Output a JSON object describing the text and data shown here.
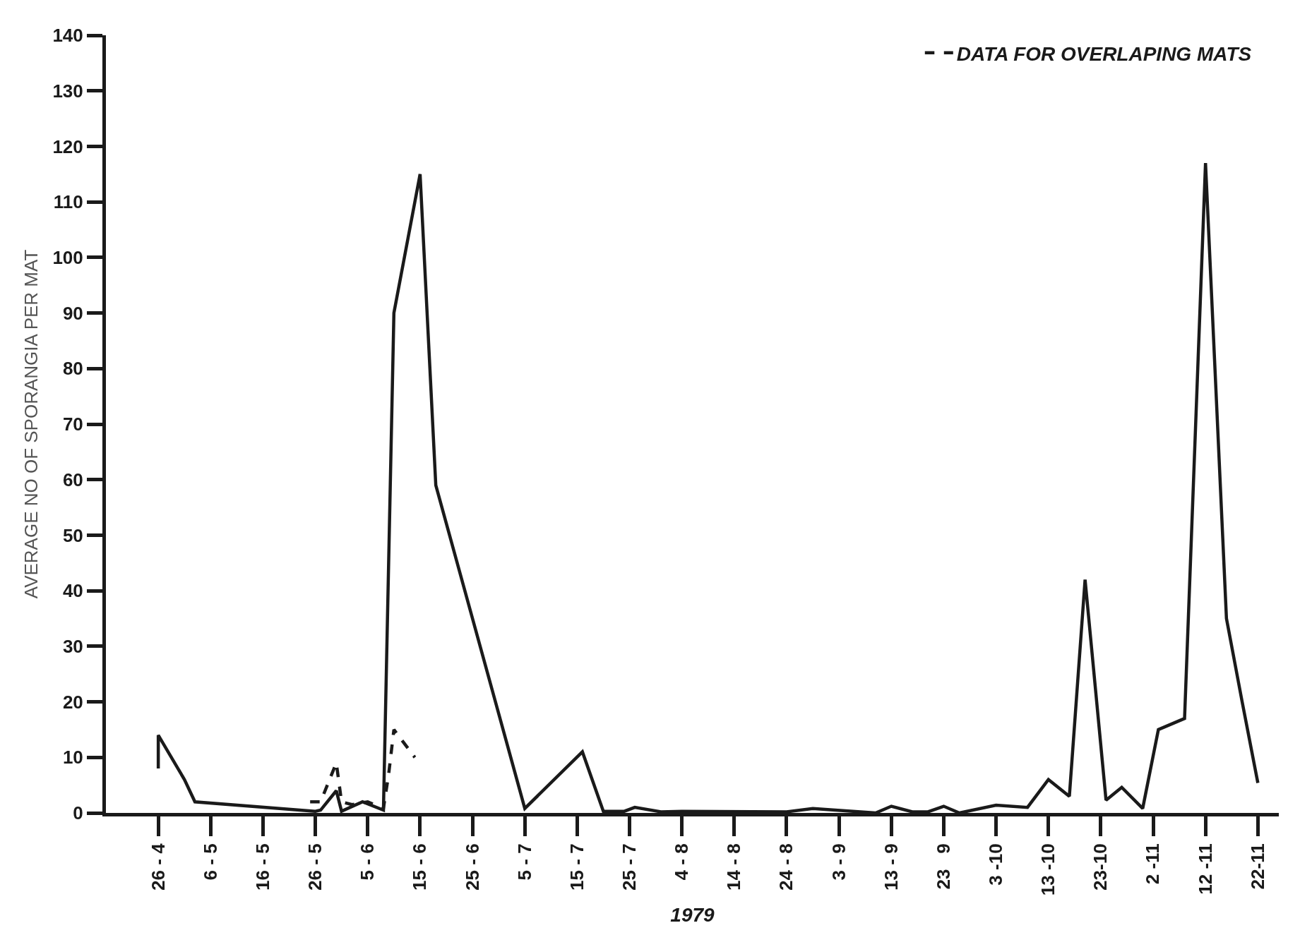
{
  "chart_data": {
    "type": "line",
    "xlabel": "1979",
    "ylabel": "AVERAGE NO OF SPORANGIA PER MAT",
    "xlim": [
      "1979-04-16",
      "1979-11-26"
    ],
    "xticks": [
      {
        "value": "1979-04-26",
        "label": "26 - 4"
      },
      {
        "value": "1979-05-06",
        "label": "6 - 5"
      },
      {
        "value": "1979-05-16",
        "label": "16 - 5"
      },
      {
        "value": "1979-05-26",
        "label": "26 - 5"
      },
      {
        "value": "1979-06-05",
        "label": "5 - 6"
      },
      {
        "value": "1979-06-15",
        "label": "15 - 6"
      },
      {
        "value": "1979-06-25",
        "label": "25 - 6"
      },
      {
        "value": "1979-07-05",
        "label": "5 - 7"
      },
      {
        "value": "1979-07-15",
        "label": "15 - 7"
      },
      {
        "value": "1979-07-25",
        "label": "25 - 7"
      },
      {
        "value": "1979-08-04",
        "label": "4 - 8"
      },
      {
        "value": "1979-08-14",
        "label": "14 - 8"
      },
      {
        "value": "1979-08-24",
        "label": "24 - 8"
      },
      {
        "value": "1979-09-03",
        "label": "3 - 9"
      },
      {
        "value": "1979-09-13",
        "label": "13 - 9"
      },
      {
        "value": "1979-09-23",
        "label": "23   9"
      },
      {
        "value": "1979-10-03",
        "label": "3 -10"
      },
      {
        "value": "1979-10-13",
        "label": "13 -10"
      },
      {
        "value": "1979-10-23",
        "label": "23-10"
      },
      {
        "value": "1979-11-02",
        "label": "2 -11"
      },
      {
        "value": "1979-11-12",
        "label": "12 -11"
      },
      {
        "value": "1979-11-22",
        "label": "22-11"
      }
    ],
    "ylim": [
      0,
      140
    ],
    "yticks": [
      0,
      10,
      20,
      30,
      40,
      50,
      60,
      70,
      80,
      90,
      100,
      110,
      120,
      130,
      140
    ],
    "grid": false,
    "legend": "top right",
    "marker": "none",
    "line_style": "solid",
    "series": [
      {
        "color": "#1a1a1a",
        "x": [
          "1979-04-26",
          "1979-04-26",
          "1979-05-01",
          "1979-05-03",
          "1979-05-26",
          "1979-05-27",
          "1979-05-30",
          "1979-05-31",
          "1979-06-04",
          "1979-06-08",
          "1979-06-10",
          "1979-06-15",
          "1979-06-18",
          "1979-07-05",
          "1979-07-16",
          "1979-07-20",
          "1979-07-24",
          "1979-07-26",
          "1979-07-31",
          "1979-08-04",
          "1979-08-24",
          "1979-08-29",
          "1979-09-10",
          "1979-09-13",
          "1979-09-17",
          "1979-09-20",
          "1979-09-23",
          "1979-09-26",
          "1979-10-03",
          "1979-10-09",
          "1979-10-13",
          "1979-10-17",
          "1979-10-20",
          "1979-10-24",
          "1979-10-27",
          "1979-10-31",
          "1979-11-03",
          "1979-11-08",
          "1979-11-12",
          "1979-11-16",
          "1979-11-19",
          "1979-11-22"
        ],
        "values": [
          8,
          14,
          6,
          2,
          0.3,
          0.5,
          4,
          0.3,
          2,
          0.5,
          90,
          115,
          59,
          0.8,
          11,
          0.3,
          0.3,
          1,
          0.2,
          0.3,
          0.2,
          0.8,
          0,
          1.2,
          0.2,
          0.2,
          1.2,
          0,
          1.4,
          1,
          6,
          3,
          42,
          2.3,
          4.6,
          0.8,
          15,
          17,
          117,
          35,
          20,
          5.4
        ]
      },
      {
        "name": "DATA FOR OVERLAPING MATS",
        "color": "#1a1a1a",
        "line_style": "dashed",
        "x": [
          "1979-05-25",
          "1979-05-27",
          "1979-05-30",
          "1979-05-31",
          "1979-06-02",
          "1979-06-05",
          "1979-06-08",
          "1979-06-09",
          "1979-06-10",
          "1979-06-14"
        ],
        "values": [
          2,
          2,
          9,
          2,
          1.5,
          2,
          0.8,
          7,
          15,
          10
        ]
      }
    ]
  }
}
